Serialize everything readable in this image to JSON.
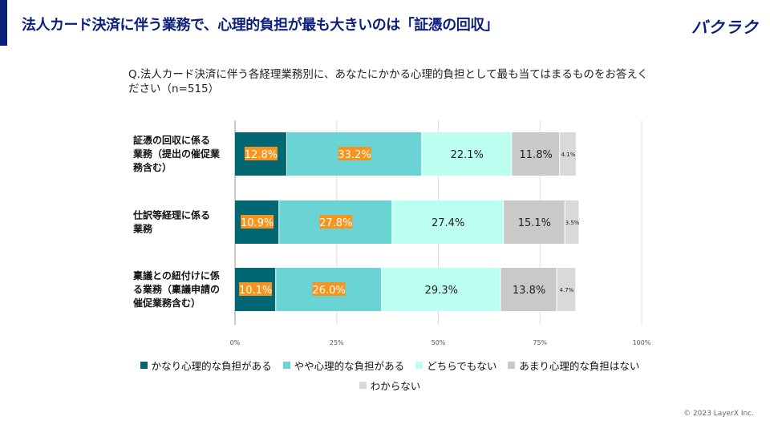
{
  "header": {
    "title": "法人カード決済に伴う業務で、心理的負担が最も大きいのは「証憑の回収」",
    "logo": "バクラク"
  },
  "footer": {
    "copyright": "© 2023 LayerX Inc."
  },
  "chart_data": {
    "type": "bar",
    "stacked": true,
    "orientation": "horizontal",
    "title": "Q.法人カード決済に伴う各経理業務別に、あなたにかかる心理的負担として最も当てはまるものをお答えください（n=515）",
    "categories": [
      [
        "証憑の回収に係る",
        "業務（提出の催促業",
        "務含む）"
      ],
      [
        "仕訳等経理に係る",
        "業務"
      ],
      [
        "稟議との紐付けに係",
        "る業務（稟議申請の",
        "催促業務含む）"
      ]
    ],
    "xlim": [
      0,
      100
    ],
    "xticks": [
      "0%",
      "25%",
      "50%",
      "75%",
      "100%"
    ],
    "series": [
      {
        "name": "かなり心理的な負担がある",
        "color": "#006773",
        "values": [
          12.8,
          10.9,
          10.1
        ]
      },
      {
        "name": "やや心理的な負担がある",
        "color": "#6ad3d3",
        "values": [
          33.2,
          27.8,
          26.0
        ]
      },
      {
        "name": "どちらでもない",
        "color": "#bafff0",
        "values": [
          22.1,
          27.4,
          29.3
        ]
      },
      {
        "name": "あまり心理的な負担はない",
        "color": "#c9c9c9",
        "values": [
          11.8,
          15.1,
          13.8
        ]
      },
      {
        "name": "わからない",
        "color": "#d9d9d9",
        "values": [
          4.1,
          3.5,
          4.7
        ]
      }
    ],
    "label_highlight": "#f7941d",
    "legend": "bottom"
  }
}
